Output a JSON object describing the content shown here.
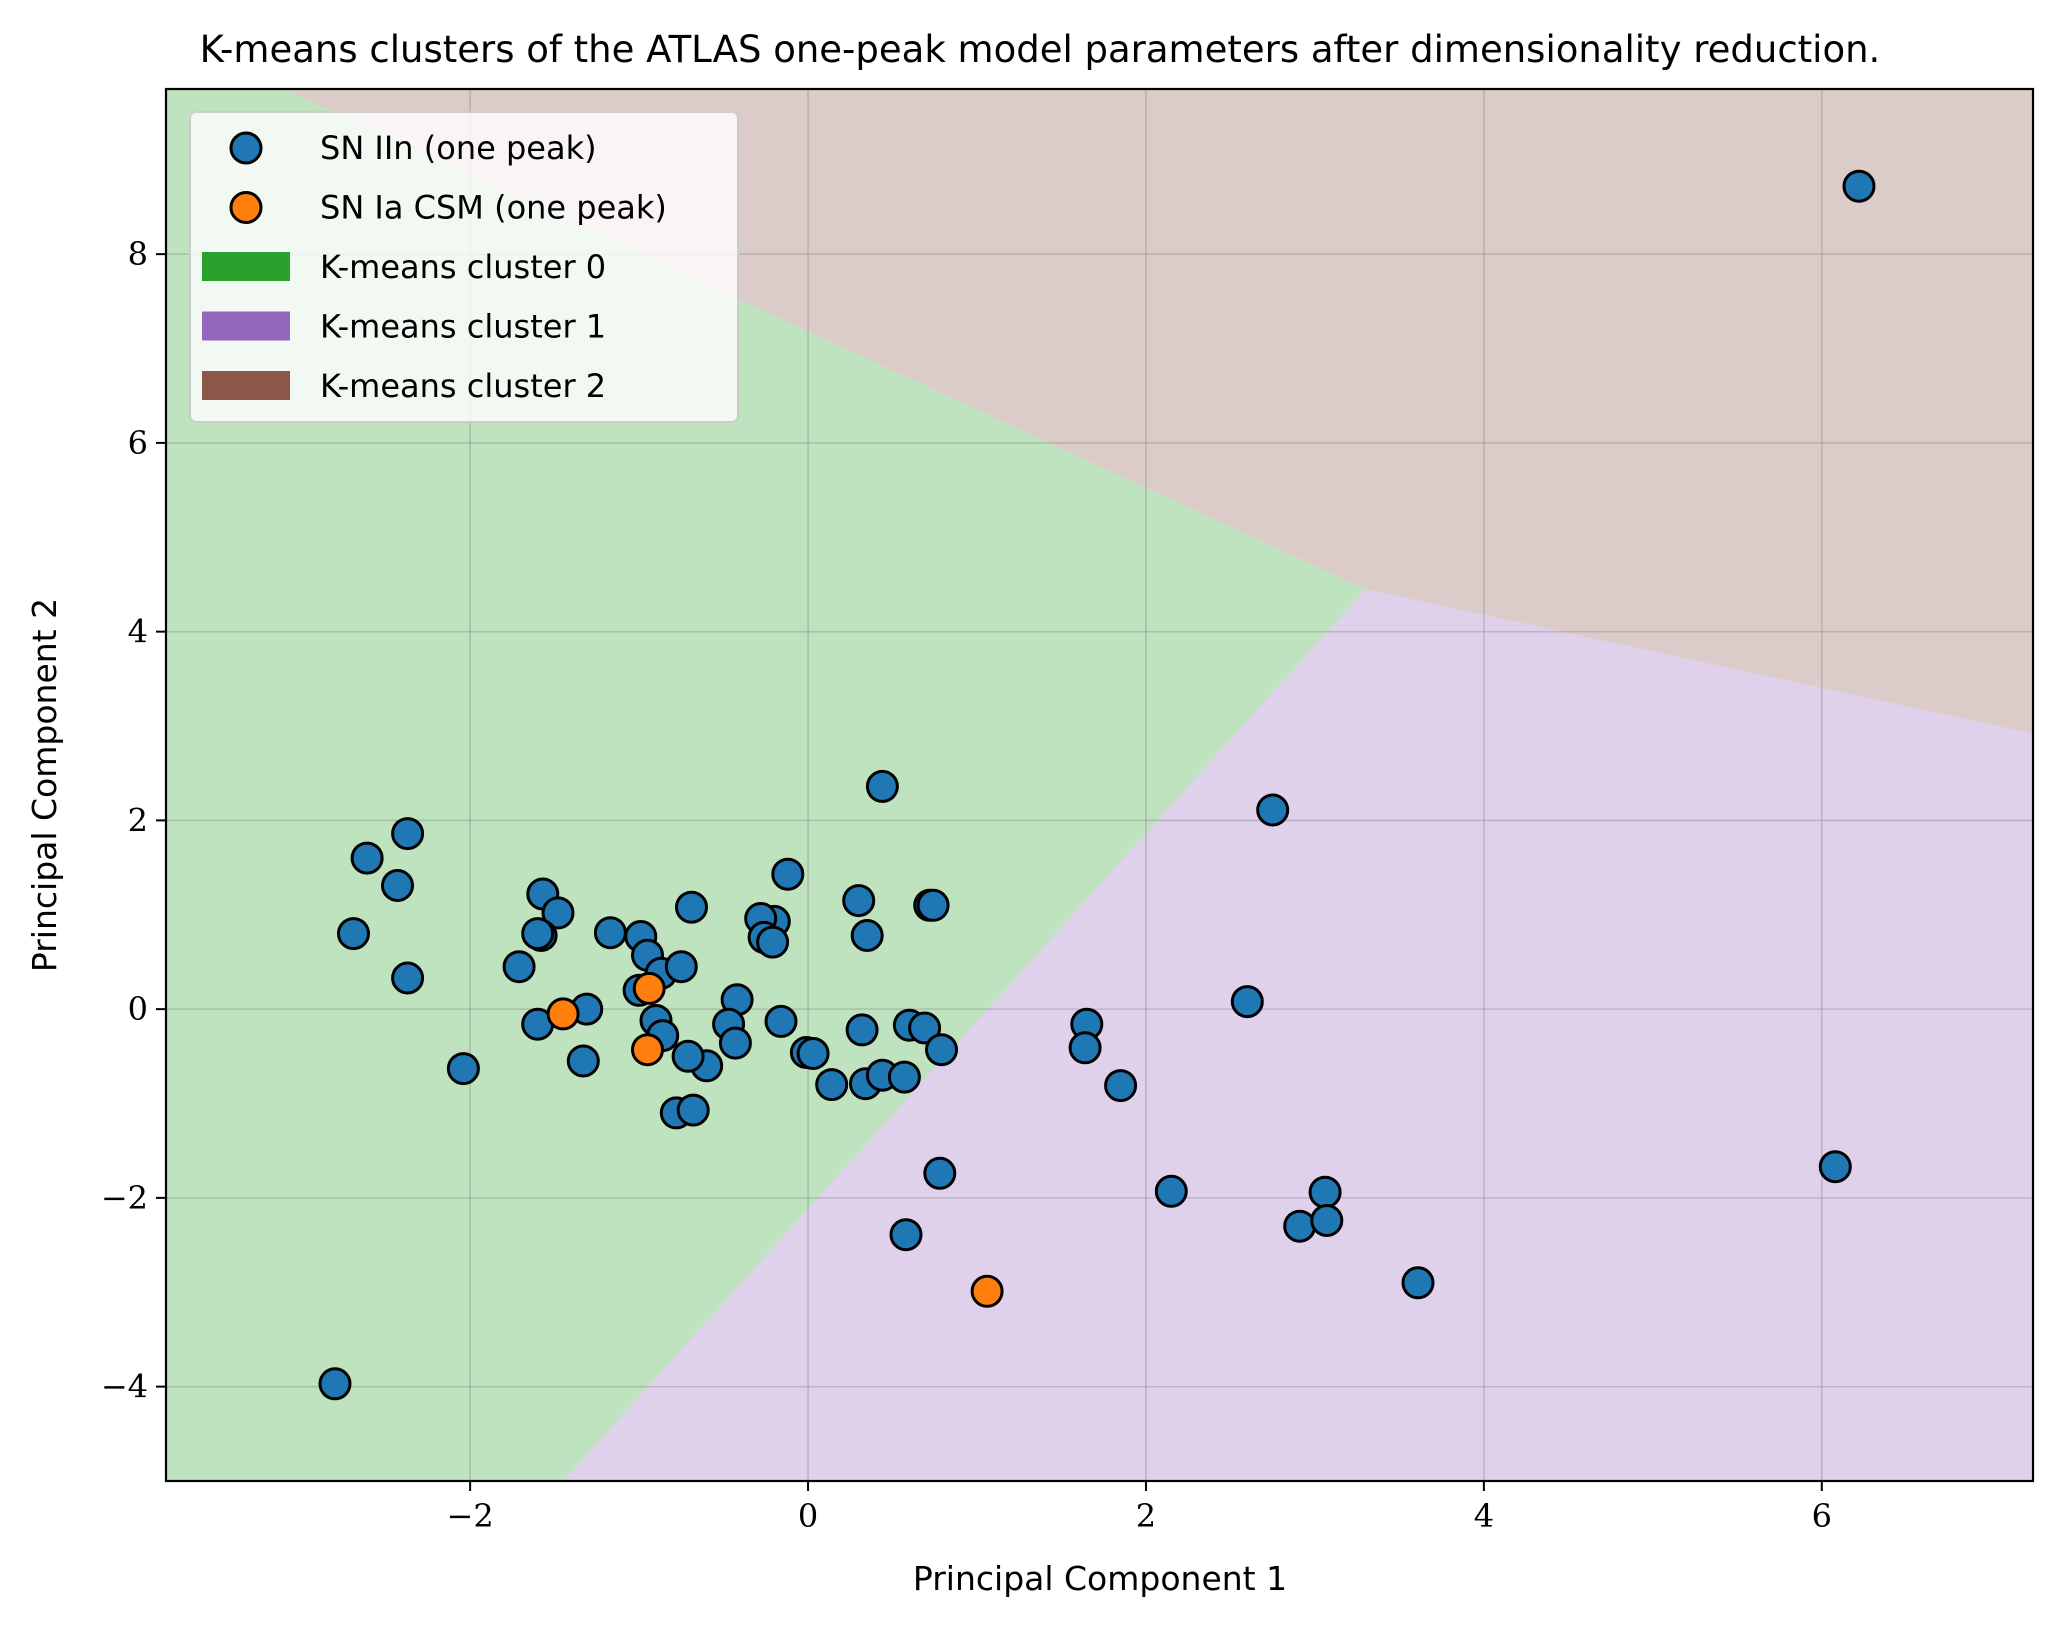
{
  "chart_data": {
    "type": "scatter",
    "title": "K-means clusters of the ATLAS one-peak model parameters after dimensionality reduction.",
    "xlabel": "Principal Component 1",
    "ylabel": "Principal Component 2",
    "xlim": [
      -3.8,
      7.25
    ],
    "ylim": [
      -5.0,
      9.75
    ],
    "xticks": [
      -2,
      0,
      2,
      4,
      6
    ],
    "yticks": [
      -4,
      -2,
      0,
      2,
      4,
      6,
      8
    ],
    "xtick_labels": [
      "−2",
      "0",
      "2",
      "4",
      "6"
    ],
    "ytick_labels": [
      "−4",
      "−2",
      "0",
      "2",
      "4",
      "6",
      "8"
    ],
    "grid": true,
    "legend_position": "top-left",
    "regions": [
      {
        "name": "K-means cluster 0",
        "color": "#2ca02c",
        "polygon": [
          [
            -3.8,
            9.75
          ],
          [
            -3.1,
            9.75
          ],
          [
            3.3,
            4.45
          ],
          [
            -1.45,
            -5.0
          ],
          [
            -3.8,
            -5.0
          ]
        ]
      },
      {
        "name": "K-means cluster 1",
        "color": "#9467bd",
        "polygon": [
          [
            -1.45,
            -5.0
          ],
          [
            3.3,
            4.45
          ],
          [
            7.25,
            2.92
          ],
          [
            7.25,
            -5.0
          ]
        ]
      },
      {
        "name": "K-means cluster 2",
        "color": "#8c564b",
        "polygon": [
          [
            -3.1,
            9.75
          ],
          [
            7.25,
            9.75
          ],
          [
            7.25,
            2.92
          ],
          [
            3.3,
            4.45
          ]
        ]
      }
    ],
    "series": [
      {
        "name": "SN IIn (one peak)",
        "color": "#1f77b4",
        "points": [
          [
            6.22,
            8.72
          ],
          [
            0.44,
            2.36
          ],
          [
            2.75,
            2.11
          ],
          [
            -2.37,
            1.86
          ],
          [
            -2.61,
            1.6
          ],
          [
            -2.43,
            1.31
          ],
          [
            -2.69,
            0.8
          ],
          [
            -2.37,
            0.33
          ],
          [
            -1.57,
            1.22
          ],
          [
            -1.48,
            1.02
          ],
          [
            -1.58,
            0.78
          ],
          [
            -1.6,
            0.8
          ],
          [
            -1.71,
            0.45
          ],
          [
            -1.17,
            0.81
          ],
          [
            -0.99,
            0.77
          ],
          [
            -0.95,
            0.57
          ],
          [
            -0.87,
            0.38
          ],
          [
            -0.75,
            0.45
          ],
          [
            -1.0,
            0.2
          ],
          [
            -0.69,
            1.08
          ],
          [
            -0.12,
            1.43
          ],
          [
            -0.2,
            0.93
          ],
          [
            -0.28,
            0.96
          ],
          [
            -0.26,
            0.76
          ],
          [
            -0.21,
            0.71
          ],
          [
            0.3,
            1.15
          ],
          [
            0.35,
            0.78
          ],
          [
            0.72,
            1.1
          ],
          [
            0.74,
            1.1
          ],
          [
            -0.42,
            0.1
          ],
          [
            -0.47,
            -0.16
          ],
          [
            -0.43,
            -0.36
          ],
          [
            -0.6,
            -0.6
          ],
          [
            -0.71,
            -0.5
          ],
          [
            -0.9,
            -0.12
          ],
          [
            -0.86,
            -0.28
          ],
          [
            -0.78,
            -1.1
          ],
          [
            -0.68,
            -1.07
          ],
          [
            -1.31,
            0.0
          ],
          [
            -1.33,
            -0.55
          ],
          [
            -1.6,
            -0.16
          ],
          [
            -2.04,
            -0.63
          ],
          [
            -0.16,
            -0.13
          ],
          [
            -0.01,
            -0.46
          ],
          [
            0.03,
            -0.47
          ],
          [
            0.14,
            -0.8
          ],
          [
            0.32,
            -0.22
          ],
          [
            0.34,
            -0.79
          ],
          [
            0.44,
            -0.7
          ],
          [
            0.57,
            -0.72
          ],
          [
            0.6,
            -0.17
          ],
          [
            0.69,
            -0.2
          ],
          [
            0.79,
            -0.43
          ],
          [
            0.78,
            -1.74
          ],
          [
            0.58,
            -2.39
          ],
          [
            1.65,
            -0.16
          ],
          [
            1.64,
            -0.41
          ],
          [
            1.85,
            -0.81
          ],
          [
            2.15,
            -1.93
          ],
          [
            2.6,
            0.08
          ],
          [
            2.91,
            -2.3
          ],
          [
            3.06,
            -1.94
          ],
          [
            3.07,
            -2.24
          ],
          [
            3.61,
            -2.9
          ],
          [
            6.08,
            -1.67
          ],
          [
            -2.8,
            -3.97
          ]
        ]
      },
      {
        "name": "SN Ia CSM (one peak)",
        "color": "#ff7f0e",
        "points": [
          [
            -0.94,
            0.22
          ],
          [
            -1.45,
            -0.05
          ],
          [
            -0.95,
            -0.43
          ],
          [
            1.06,
            -2.99
          ]
        ]
      }
    ]
  }
}
